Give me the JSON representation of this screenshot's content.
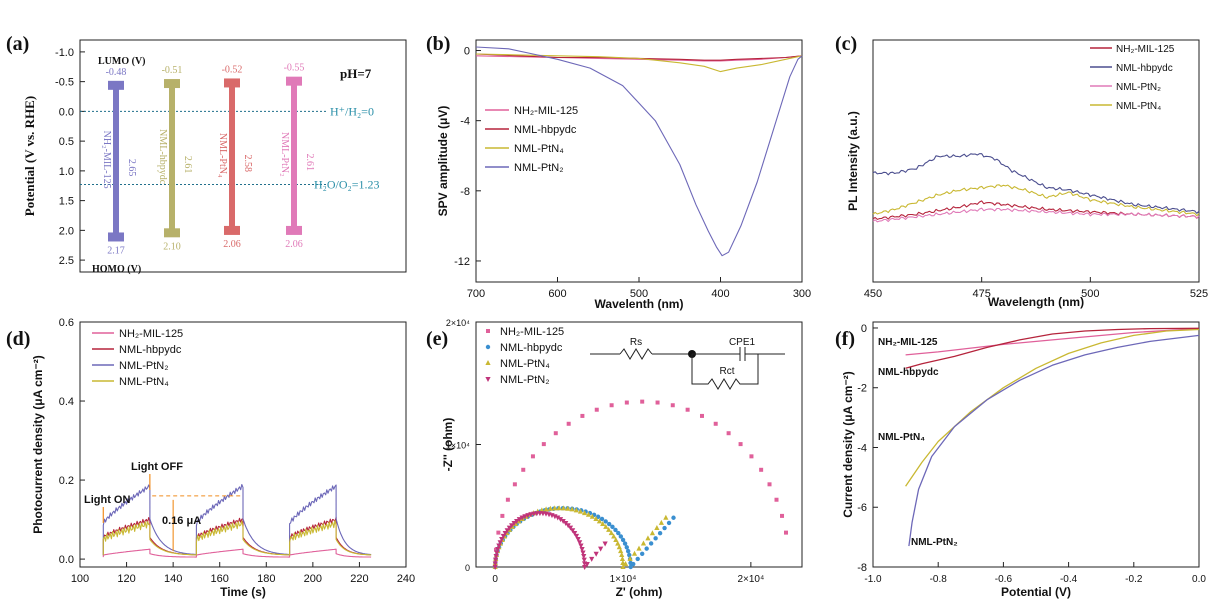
{
  "panels": {
    "a": {
      "label": "(a)",
      "ylabel": "Potential (V vs. RHE)",
      "lumo_label": "LUMO (V)",
      "homo_label": "HOMO (V)",
      "ph_label": "pH=7",
      "h_line_label": "H⁺/H₂=0",
      "o_line_label": "H₂O/O₂=1.23",
      "yticks": [
        "-1.0",
        "-0.5",
        "0.0",
        "0.5",
        "1.0",
        "1.5",
        "2.0",
        "2.5"
      ]
    },
    "b": {
      "label": "(b)",
      "xlabel": "Wavelenth (nm)",
      "ylabel": "SPV amplitude (μV)",
      "xticks": [
        "700",
        "600",
        "500",
        "400",
        "300"
      ],
      "yticks": [
        "0",
        "-4",
        "-8",
        "-12"
      ]
    },
    "c": {
      "label": "(c)",
      "xlabel": "Wavelength (nm)",
      "ylabel": "PL Intensity (a.u.)",
      "xticks": [
        "450",
        "475",
        "500",
        "525"
      ]
    },
    "d": {
      "label": "(d)",
      "xlabel": "Time (s)",
      "ylabel": "Photocurrent density (μA cm⁻²)",
      "xticks": [
        "100",
        "120",
        "140",
        "160",
        "180",
        "200",
        "220",
        "240"
      ],
      "yticks": [
        "0.0",
        "0.2",
        "0.4",
        "0.6"
      ],
      "annot_on": "Light ON",
      "annot_off": "Light OFF",
      "annot_delta": "0.16 μA"
    },
    "e": {
      "label": "(e)",
      "xlabel": "Z' (ohm)",
      "ylabel": "-Z'' (ohm)",
      "xticks": [
        "0",
        "1×10⁴",
        "2×10⁴"
      ],
      "yticks": [
        "0",
        "1×10⁴",
        "2×10⁴"
      ],
      "circuit_rs": "Rs",
      "circuit_cpe": "CPE1",
      "circuit_rct": "Rct"
    },
    "f": {
      "label": "(f)",
      "xlabel": "Potential (V)",
      "ylabel": "Current density (μA cm⁻²)",
      "xticks": [
        "-1.0",
        "-0.8",
        "-0.6",
        "-0.4",
        "-0.2",
        "0.0"
      ],
      "yticks": [
        "0",
        "-2",
        "-4",
        "-6",
        "-8"
      ],
      "curve_labels": [
        "NH₂-MIL-125",
        "NML-hbpydc",
        "NML-PtN₄",
        "NML-PtN₂"
      ]
    }
  },
  "chart_data": [
    {
      "panel": "a",
      "type": "bar",
      "categories": [
        "NH₂-MIL-125",
        "NML-hbpydc",
        "NML-PtN₄",
        "NML-PtN₂"
      ],
      "lumo": [
        -0.48,
        -0.51,
        -0.52,
        -0.55
      ],
      "homo": [
        2.17,
        2.1,
        2.06,
        2.06
      ],
      "gap": [
        2.65,
        2.61,
        2.58,
        2.61
      ],
      "lumo_text": [
        "-0.48",
        "-0.51",
        "-0.52",
        "-0.55"
      ],
      "homo_text": [
        "2.17",
        "2.10",
        "2.06",
        "2.06"
      ],
      "gap_text": [
        "2.65",
        "2.61",
        "2.58",
        "2.61"
      ],
      "reference_lines": [
        0,
        1.23
      ],
      "ylim": [
        -1.2,
        2.7
      ],
      "colors": [
        "#7b77c4",
        "#b7b16a",
        "#d96a6a",
        "#e07ab8"
      ]
    },
    {
      "panel": "b",
      "type": "line",
      "xlim": [
        700,
        300
      ],
      "ylim": [
        -13.2,
        0.6
      ],
      "legend": "center-left",
      "series": [
        {
          "name": "NH₂-MIL-125",
          "color": "#e0609a",
          "x": [
            700,
            650,
            600,
            550,
            500,
            450,
            420,
            400,
            380,
            350,
            320,
            300
          ],
          "y": [
            -0.3,
            -0.35,
            -0.4,
            -0.45,
            -0.5,
            -0.55,
            -0.6,
            -0.6,
            -0.55,
            -0.5,
            -0.4,
            -0.3
          ]
        },
        {
          "name": "NML-hbpydc",
          "color": "#b5243c",
          "x": [
            700,
            650,
            600,
            550,
            500,
            450,
            420,
            400,
            380,
            350,
            320,
            300
          ],
          "y": [
            -0.2,
            -0.3,
            -0.4,
            -0.4,
            -0.45,
            -0.5,
            -0.55,
            -0.55,
            -0.5,
            -0.45,
            -0.4,
            -0.3
          ]
        },
        {
          "name": "NML-PtN₄",
          "color": "#c9b832",
          "x": [
            700,
            650,
            600,
            550,
            500,
            450,
            420,
            400,
            380,
            350,
            320,
            300
          ],
          "y": [
            -0.2,
            -0.25,
            -0.3,
            -0.35,
            -0.45,
            -0.7,
            -0.9,
            -1.2,
            -1.0,
            -0.8,
            -0.5,
            -0.3
          ]
        },
        {
          "name": "NML-PtN₂",
          "color": "#6d68b8",
          "x": [
            700,
            660,
            630,
            600,
            560,
            520,
            480,
            450,
            430,
            415,
            405,
            398,
            390,
            375,
            355,
            335,
            315,
            305,
            300
          ],
          "y": [
            0.2,
            0.1,
            -0.2,
            -0.5,
            -1.0,
            -2.0,
            -4.0,
            -6.5,
            -8.8,
            -10.3,
            -11.2,
            -11.7,
            -11.5,
            -10.0,
            -7.5,
            -4.5,
            -1.5,
            -0.5,
            -0.3
          ]
        }
      ]
    },
    {
      "panel": "c",
      "type": "line",
      "xlim": [
        450,
        525
      ],
      "ylim": [
        0,
        1
      ],
      "legend": "top-right",
      "series": [
        {
          "name": "NH₂-MIL-125",
          "color": "#b5243c",
          "x": [
            450,
            460,
            470,
            475,
            480,
            490,
            500,
            510,
            525
          ],
          "y": [
            0.26,
            0.28,
            0.31,
            0.33,
            0.32,
            0.3,
            0.29,
            0.28,
            0.27
          ]
        },
        {
          "name": "NML-hbpydc",
          "color": "#4c4f8f",
          "x": [
            450,
            455,
            460,
            465,
            470,
            474,
            478,
            482,
            490,
            495,
            500,
            510,
            525
          ],
          "y": [
            0.45,
            0.45,
            0.47,
            0.52,
            0.52,
            0.53,
            0.51,
            0.46,
            0.39,
            0.38,
            0.36,
            0.32,
            0.29
          ]
        },
        {
          "name": "NML-PtN₂",
          "color": "#e07ab8",
          "x": [
            450,
            460,
            470,
            475,
            480,
            490,
            500,
            510,
            525
          ],
          "y": [
            0.25,
            0.27,
            0.29,
            0.3,
            0.3,
            0.29,
            0.28,
            0.28,
            0.27
          ]
        },
        {
          "name": "NML-PtN₄",
          "color": "#c9b832",
          "x": [
            450,
            455,
            460,
            465,
            470,
            475,
            480,
            485,
            490,
            495,
            500,
            510,
            525
          ],
          "y": [
            0.28,
            0.3,
            0.33,
            0.36,
            0.38,
            0.39,
            0.4,
            0.38,
            0.35,
            0.37,
            0.34,
            0.31,
            0.28
          ]
        }
      ]
    },
    {
      "panel": "d",
      "type": "line",
      "xlim": [
        100,
        240
      ],
      "ylim": [
        -0.02,
        0.6
      ],
      "legend": "top-left",
      "cycles": [
        [
          110,
          130
        ],
        [
          150,
          170
        ],
        [
          190,
          210
        ]
      ],
      "series": [
        {
          "name": "NH₂-MIL-125",
          "color": "#e0609a",
          "peak": 0.025,
          "start": 0.01,
          "base": 0.005
        },
        {
          "name": "NML-hbpydc",
          "color": "#b5243c",
          "peak": 0.1,
          "start": 0.055,
          "base": 0.01
        },
        {
          "name": "NML-PtN₂",
          "color": "#6d68b8",
          "peak": 0.185,
          "start": 0.09,
          "base": 0.01
        },
        {
          "name": "NML-PtN₄",
          "color": "#c9b832",
          "peak": 0.09,
          "start": 0.05,
          "base": 0.01
        }
      ]
    },
    {
      "panel": "e",
      "type": "scatter",
      "xlim": [
        -1500,
        24000
      ],
      "ylim": [
        0,
        20000
      ],
      "legend": "top-left",
      "series": [
        {
          "name": "NH₂-MIL-125",
          "color": "#e0609a",
          "marker": "square",
          "x0": 0,
          "R": 23000,
          "ymax": 13500,
          "xmax": 22800
        },
        {
          "name": "NML-hbpydc",
          "color": "#3a8fd0",
          "marker": "circle",
          "x0": 0,
          "R": 10600,
          "ymax": 4800,
          "xmax": 14000
        },
        {
          "name": "NML-PtN₄",
          "color": "#c9b832",
          "marker": "triangle-up",
          "x0": 0,
          "R": 10000,
          "ymax": 4800,
          "xmax": 13500
        },
        {
          "name": "NML-PtN₂",
          "color": "#c0347a",
          "marker": "triangle-down",
          "x0": 0,
          "R": 7000,
          "ymax": 4400,
          "xmax": 8600
        }
      ]
    },
    {
      "panel": "f",
      "type": "line",
      "xlim": [
        -1.0,
        0.0
      ],
      "ylim": [
        -8,
        0.2
      ],
      "series": [
        {
          "name": "NH₂-MIL-125",
          "color": "#e0609a",
          "x": [
            -0.9,
            -0.8,
            -0.6,
            -0.4,
            -0.2,
            0.0
          ],
          "y": [
            -0.9,
            -0.8,
            -0.55,
            -0.35,
            -0.15,
            -0.02
          ]
        },
        {
          "name": "NML-hbpydc",
          "color": "#b5243c",
          "x": [
            -0.9,
            -0.85,
            -0.75,
            -0.65,
            -0.55,
            -0.45,
            -0.35,
            -0.25,
            -0.15,
            0.0
          ],
          "y": [
            -1.35,
            -1.2,
            -0.95,
            -0.65,
            -0.4,
            -0.2,
            -0.1,
            -0.05,
            -0.02,
            -0.01
          ]
        },
        {
          "name": "NML-PtN₄",
          "color": "#c9b832",
          "x": [
            -0.9,
            -0.85,
            -0.8,
            -0.7,
            -0.6,
            -0.5,
            -0.4,
            -0.3,
            -0.2,
            -0.1,
            0.0
          ],
          "y": [
            -5.3,
            -4.5,
            -3.8,
            -2.8,
            -2.0,
            -1.35,
            -0.85,
            -0.5,
            -0.25,
            -0.1,
            -0.05
          ]
        },
        {
          "name": "NML-PtN₂",
          "color": "#6d68b8",
          "x": [
            -0.89,
            -0.88,
            -0.86,
            -0.82,
            -0.75,
            -0.65,
            -0.55,
            -0.45,
            -0.35,
            -0.25,
            -0.15,
            0.0
          ],
          "y": [
            -7.3,
            -6.5,
            -5.4,
            -4.3,
            -3.3,
            -2.4,
            -1.75,
            -1.25,
            -0.9,
            -0.65,
            -0.45,
            -0.25
          ]
        }
      ]
    }
  ]
}
